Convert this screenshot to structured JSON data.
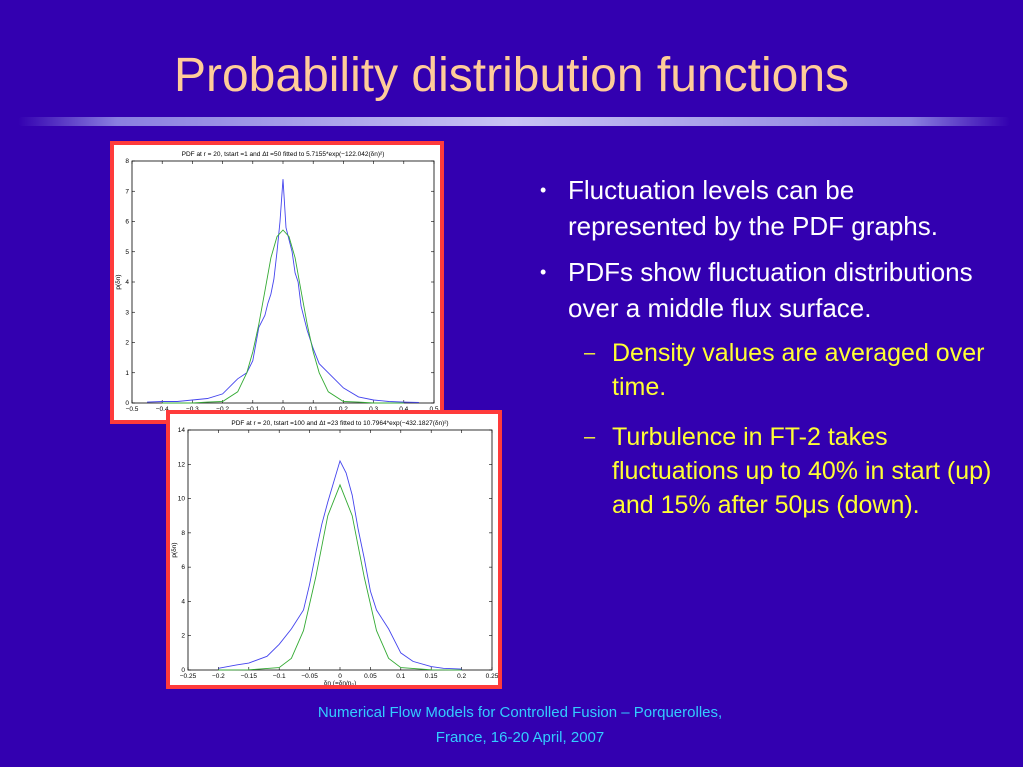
{
  "slide": {
    "title": "Probability distribution functions",
    "bullets": [
      {
        "text": "Fluctuation levels can be represented by the PDF graphs."
      },
      {
        "text": "PDFs show fluctuation distributions over a middle flux surface."
      }
    ],
    "sub_bullets": [
      {
        "text": "Density values are averaged over time."
      },
      {
        "text": "Turbulence in FT-2 takes fluctuations up to 40% in start (up) and 15% after 50μs (down)."
      }
    ],
    "bullet_marker": "•",
    "sub_bullet_marker": "–",
    "footer_line1": "Numerical Flow Models for Controlled Fusion – Porquerolles,",
    "footer_line2": "France, 16-20 April,  2007",
    "colors": {
      "background": "#3300b0",
      "title": "#ffcc99",
      "sub_bullet": "#ffff33",
      "footer": "#33ccff",
      "frame": "#ff3b3b",
      "data_series": "#4444ee",
      "fit_series": "#33aa33"
    }
  },
  "chart_data": [
    {
      "type": "line",
      "title": "PDF at  r = 20, tstart =1  and Δt =50 fitted to 5.7155*exp(−122.042(δn)²)",
      "xlabel": "",
      "ylabel": "p(δn)",
      "xlim": [
        -0.5,
        0.5
      ],
      "ylim": [
        0,
        8
      ],
      "x_ticks": [
        "−0.5",
        "−0.4",
        "−0.3",
        "−0.2",
        "−0.1",
        "0",
        "0.1",
        "0.2",
        "0.3",
        "0.4",
        "0.5"
      ],
      "y_ticks": [
        "0",
        "1",
        "2",
        "3",
        "4",
        "5",
        "6",
        "7",
        "8"
      ],
      "grid": false,
      "series": [
        {
          "style": "measured",
          "x": [
            -0.45,
            -0.4,
            -0.35,
            -0.3,
            -0.25,
            -0.2,
            -0.15,
            -0.12,
            -0.1,
            -0.08,
            -0.06,
            -0.05,
            -0.04,
            -0.03,
            -0.02,
            -0.01,
            0,
            0.01,
            0.02,
            0.03,
            0.04,
            0.05,
            0.06,
            0.08,
            0.1,
            0.12,
            0.15,
            0.2,
            0.25,
            0.3,
            0.35,
            0.4,
            0.45
          ],
          "y": [
            0.03,
            0.05,
            0.05,
            0.1,
            0.15,
            0.3,
            0.8,
            1.0,
            1.4,
            2.5,
            2.9,
            3.3,
            3.6,
            4.1,
            5.0,
            6.0,
            7.4,
            5.8,
            5.4,
            5.0,
            4.3,
            4.0,
            3.2,
            2.4,
            1.8,
            1.3,
            1.0,
            0.5,
            0.2,
            0.1,
            0.05,
            0.03,
            0.02
          ]
        },
        {
          "style": "gaussian fit",
          "x": [
            -0.4,
            -0.3,
            -0.25,
            -0.2,
            -0.15,
            -0.12,
            -0.1,
            -0.08,
            -0.06,
            -0.04,
            -0.02,
            0,
            0.02,
            0.04,
            0.06,
            0.08,
            0.1,
            0.12,
            0.15,
            0.2,
            0.25,
            0.3,
            0.4
          ],
          "y": [
            0,
            0,
            0.03,
            0.05,
            0.37,
            1.0,
            1.69,
            2.6,
            3.7,
            4.8,
            5.5,
            5.72,
            5.5,
            4.8,
            3.7,
            2.6,
            1.69,
            1.0,
            0.37,
            0.05,
            0.03,
            0,
            0
          ]
        }
      ]
    },
    {
      "type": "line",
      "title": "PDF at  r = 20, tstart =100  and Δt =23 fitted to 10.7964*exp(−432.1827(δn)²)",
      "xlabel": "δn (=δn/n₀)",
      "ylabel": "p(δn)",
      "xlim": [
        -0.25,
        0.25
      ],
      "ylim": [
        0,
        14
      ],
      "x_ticks": [
        "−0.25",
        "−0.2",
        "−0.15",
        "−0.1",
        "−0.05",
        "0",
        "0.05",
        "0.1",
        "0.15",
        "0.2",
        "0.25"
      ],
      "y_ticks": [
        "0",
        "2",
        "4",
        "6",
        "8",
        "10",
        "12",
        "14"
      ],
      "grid": false,
      "series": [
        {
          "style": "measured",
          "x": [
            -0.2,
            -0.17,
            -0.15,
            -0.12,
            -0.1,
            -0.08,
            -0.06,
            -0.05,
            -0.04,
            -0.03,
            -0.02,
            -0.01,
            0,
            0.01,
            0.02,
            0.03,
            0.04,
            0.05,
            0.06,
            0.08,
            0.1,
            0.12,
            0.15,
            0.17,
            0.2
          ],
          "y": [
            0.1,
            0.3,
            0.4,
            0.8,
            1.5,
            2.4,
            3.5,
            5.0,
            6.8,
            8.5,
            9.8,
            11.0,
            12.2,
            11.5,
            10.2,
            8.2,
            6.5,
            4.6,
            3.5,
            2.4,
            1.0,
            0.5,
            0.2,
            0.1,
            0.05
          ]
        },
        {
          "style": "gaussian fit",
          "x": [
            -0.2,
            -0.15,
            -0.1,
            -0.08,
            -0.06,
            -0.04,
            -0.02,
            0,
            0.02,
            0.04,
            0.06,
            0.08,
            0.1,
            0.15,
            0.2
          ],
          "y": [
            0,
            0.01,
            0.14,
            0.68,
            2.3,
            5.4,
            9.0,
            10.8,
            9.0,
            5.4,
            2.3,
            0.68,
            0.14,
            0.01,
            0
          ]
        }
      ]
    }
  ]
}
